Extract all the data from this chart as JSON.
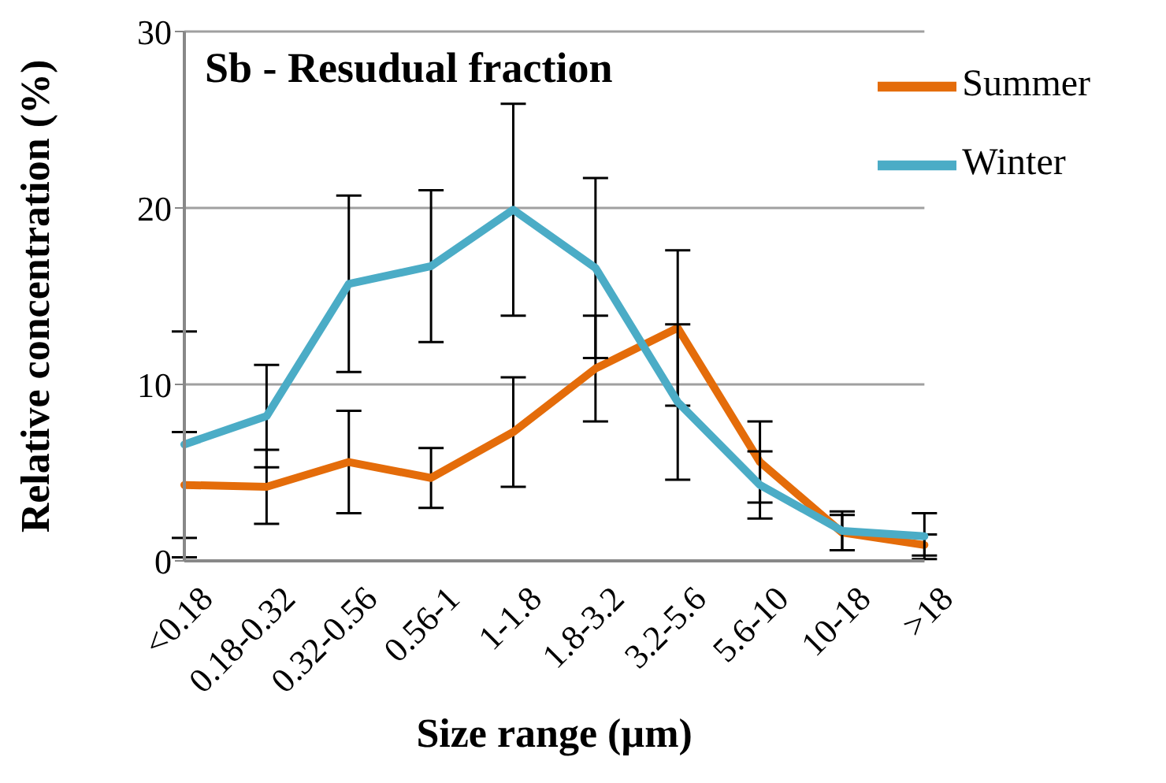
{
  "chart_data": {
    "type": "line",
    "title": "Sb - Resudual fraction",
    "xlabel": "Size range (µm)",
    "ylabel": "Relative concentration (%)",
    "categories": [
      "<0.18",
      "0.18-0.32",
      "0.32-0.56",
      "0.56-1",
      "1-1.8",
      "1.8-3.2",
      "3.2-5.6",
      "5.6-10",
      "10-18",
      ">18"
    ],
    "series": [
      {
        "name": "Summer",
        "color": "#e46c0a",
        "values": [
          4.3,
          4.2,
          5.6,
          4.7,
          7.3,
          10.9,
          13.2,
          5.6,
          1.6,
          0.9
        ],
        "errors": [
          3.0,
          2.1,
          2.9,
          1.7,
          3.1,
          3.0,
          4.4,
          2.3,
          1.0,
          0.6
        ]
      },
      {
        "name": "Winter",
        "color": "#4bacc6",
        "values": [
          6.6,
          8.2,
          15.7,
          16.7,
          19.9,
          16.6,
          9.0,
          4.3,
          1.7,
          1.4
        ],
        "errors": [
          6.4,
          2.9,
          5.0,
          4.3,
          6.0,
          5.1,
          4.4,
          1.9,
          1.1,
          1.3
        ]
      }
    ],
    "ylim": [
      0,
      30
    ],
    "yticks": [
      0,
      10,
      20,
      30
    ],
    "grid": "y",
    "legend": "top right",
    "marker": "none",
    "line_style": "solid"
  }
}
